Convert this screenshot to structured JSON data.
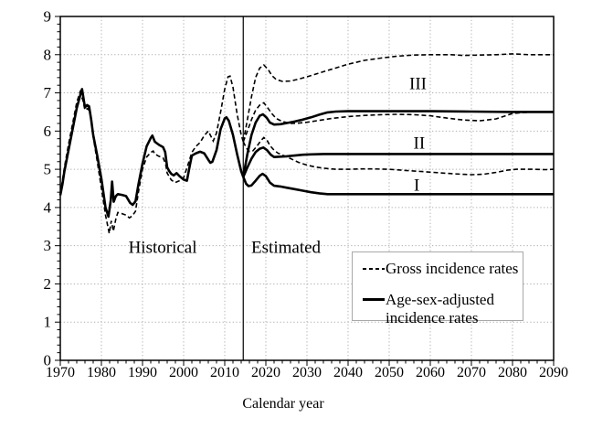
{
  "chart_data": {
    "type": "line",
    "title": "",
    "xlabel": "Calendar year",
    "ylabel": "",
    "xlim": [
      1970,
      2090
    ],
    "ylim": [
      0,
      9
    ],
    "grid": true,
    "x_axis": {
      "major_ticks": [
        1970,
        1980,
        1990,
        2000,
        2010,
        2020,
        2030,
        2040,
        2050,
        2060,
        2070,
        2080,
        2090
      ],
      "minor_step": 2
    },
    "y_axis": {
      "major_ticks": [
        0,
        1,
        2,
        3,
        4,
        5,
        6,
        7,
        8,
        9
      ],
      "minor_step": 0.2
    },
    "divider": {
      "x": 2014.5
    },
    "region_labels": [
      {
        "text": "Historical",
        "x": 1994.9,
        "y": 2.94
      },
      {
        "text": "Estimated",
        "x": 2024.9,
        "y": 2.94
      }
    ],
    "scenario_labels": [
      {
        "text": "III",
        "x": 2057.0,
        "y": 7.22
      },
      {
        "text": "II",
        "x": 2057.3,
        "y": 5.67
      },
      {
        "text": "I",
        "x": 2056.7,
        "y": 4.57
      }
    ],
    "legend": {
      "items": [
        {
          "style": "dashed",
          "lines": [
            "Gross incidence rates",
            ""
          ]
        },
        {
          "style": "solid",
          "lines": [
            "Age-sex-adjusted",
            "incidence rates"
          ]
        }
      ]
    },
    "colors": {
      "line": "#000000",
      "grid": "#b0b0b0"
    },
    "series": [
      {
        "name": "gross-historical",
        "legend": "Gross incidence rates",
        "style": "dashed",
        "points": [
          [
            1970,
            4.35
          ],
          [
            1970.5,
            4.7
          ],
          [
            1971,
            5.05
          ],
          [
            1972,
            5.65
          ],
          [
            1973,
            6.2
          ],
          [
            1974,
            6.75
          ],
          [
            1974.8,
            7.02
          ],
          [
            1975.5,
            6.8
          ],
          [
            1976,
            6.55
          ],
          [
            1976.7,
            6.6
          ],
          [
            1977.3,
            6.45
          ],
          [
            1978,
            5.85
          ],
          [
            1979,
            5.2
          ],
          [
            1980,
            4.5
          ],
          [
            1981,
            3.8
          ],
          [
            1981.9,
            3.32
          ],
          [
            1982.4,
            3.65
          ],
          [
            1982.9,
            3.38
          ],
          [
            1983.5,
            3.7
          ],
          [
            1984,
            3.87
          ],
          [
            1985,
            3.84
          ],
          [
            1986,
            3.8
          ],
          [
            1986.8,
            3.73
          ],
          [
            1987.5,
            3.78
          ],
          [
            1988.3,
            3.9
          ],
          [
            1989,
            4.4
          ],
          [
            1990,
            5.0
          ],
          [
            1991,
            5.32
          ],
          [
            1992,
            5.44
          ],
          [
            1992.6,
            5.48
          ],
          [
            1993,
            5.4
          ],
          [
            1994,
            5.34
          ],
          [
            1995,
            5.3
          ],
          [
            1995.6,
            5.15
          ],
          [
            1996,
            4.9
          ],
          [
            1997,
            4.72
          ],
          [
            1997.9,
            4.65
          ],
          [
            1999,
            4.7
          ],
          [
            2000,
            4.78
          ],
          [
            2001,
            5.1
          ],
          [
            2002,
            5.44
          ],
          [
            2003,
            5.6
          ],
          [
            2004,
            5.7
          ],
          [
            2005,
            5.88
          ],
          [
            2006,
            6.0
          ],
          [
            2006.7,
            5.85
          ],
          [
            2007.2,
            5.74
          ],
          [
            2008,
            5.95
          ],
          [
            2009,
            6.5
          ],
          [
            2010,
            7.1
          ],
          [
            2010.8,
            7.42
          ],
          [
            2011.3,
            7.44
          ],
          [
            2012,
            7.15
          ],
          [
            2013,
            6.45
          ],
          [
            2014,
            5.9
          ],
          [
            2014.5,
            5.72
          ]
        ]
      },
      {
        "name": "gross-III",
        "legend": "Gross incidence rates, scenario III",
        "style": "dashed",
        "points": [
          [
            2014.5,
            5.72
          ],
          [
            2015.5,
            6.3
          ],
          [
            2016.5,
            6.9
          ],
          [
            2017.5,
            7.4
          ],
          [
            2018.5,
            7.65
          ],
          [
            2019.5,
            7.73
          ],
          [
            2020.5,
            7.62
          ],
          [
            2021.5,
            7.45
          ],
          [
            2022.5,
            7.35
          ],
          [
            2024,
            7.3
          ],
          [
            2026,
            7.31
          ],
          [
            2028,
            7.36
          ],
          [
            2030,
            7.42
          ],
          [
            2033,
            7.52
          ],
          [
            2036,
            7.62
          ],
          [
            2040,
            7.75
          ],
          [
            2044,
            7.85
          ],
          [
            2048,
            7.91
          ],
          [
            2052,
            7.96
          ],
          [
            2056,
            7.99
          ],
          [
            2060,
            8.0
          ],
          [
            2065,
            8.0
          ],
          [
            2068,
            7.98
          ],
          [
            2072,
            7.99
          ],
          [
            2076,
            8.0
          ],
          [
            2080,
            8.02
          ],
          [
            2084,
            8.0
          ],
          [
            2090,
            8.0
          ]
        ]
      },
      {
        "name": "gross-II",
        "legend": "Gross incidence rates, scenario II",
        "style": "dashed",
        "points": [
          [
            2014.5,
            5.72
          ],
          [
            2015.5,
            6.0
          ],
          [
            2016.5,
            6.3
          ],
          [
            2017.5,
            6.55
          ],
          [
            2018.5,
            6.68
          ],
          [
            2019.5,
            6.74
          ],
          [
            2020.5,
            6.6
          ],
          [
            2021.5,
            6.45
          ],
          [
            2022.5,
            6.33
          ],
          [
            2024,
            6.25
          ],
          [
            2026,
            6.2
          ],
          [
            2028,
            6.21
          ],
          [
            2030,
            6.23
          ],
          [
            2033,
            6.28
          ],
          [
            2036,
            6.33
          ],
          [
            2040,
            6.38
          ],
          [
            2044,
            6.41
          ],
          [
            2048,
            6.43
          ],
          [
            2052,
            6.44
          ],
          [
            2056,
            6.43
          ],
          [
            2060,
            6.4
          ],
          [
            2064,
            6.34
          ],
          [
            2068,
            6.29
          ],
          [
            2072,
            6.27
          ],
          [
            2076,
            6.32
          ],
          [
            2080,
            6.46
          ],
          [
            2083,
            6.49
          ],
          [
            2086,
            6.5
          ],
          [
            2090,
            6.5
          ]
        ]
      },
      {
        "name": "gross-I",
        "legend": "Gross incidence rates, scenario I",
        "style": "dashed",
        "points": [
          [
            2014.5,
            5.72
          ],
          [
            2015.3,
            5.55
          ],
          [
            2016,
            5.47
          ],
          [
            2016.8,
            5.48
          ],
          [
            2017.8,
            5.6
          ],
          [
            2018.8,
            5.75
          ],
          [
            2019.5,
            5.83
          ],
          [
            2020.3,
            5.76
          ],
          [
            2021,
            5.62
          ],
          [
            2022,
            5.5
          ],
          [
            2023,
            5.42
          ],
          [
            2024.5,
            5.35
          ],
          [
            2026,
            5.28
          ],
          [
            2028,
            5.18
          ],
          [
            2030,
            5.11
          ],
          [
            2032,
            5.06
          ],
          [
            2034,
            5.03
          ],
          [
            2037,
            5.0
          ],
          [
            2040,
            5.0
          ],
          [
            2043,
            5.01
          ],
          [
            2046,
            5.01
          ],
          [
            2050,
            5.0
          ],
          [
            2054,
            4.97
          ],
          [
            2058,
            4.94
          ],
          [
            2062,
            4.91
          ],
          [
            2066,
            4.88
          ],
          [
            2070,
            4.86
          ],
          [
            2073,
            4.87
          ],
          [
            2076,
            4.92
          ],
          [
            2079,
            4.98
          ],
          [
            2081,
            5.0
          ],
          [
            2085,
            5.0
          ],
          [
            2088,
            4.99
          ],
          [
            2090,
            5.0
          ]
        ]
      },
      {
        "name": "adjusted-historical",
        "legend": "Age-sex-adjusted incidence rates",
        "style": "solid",
        "points": [
          [
            1970,
            4.32
          ],
          [
            1970.5,
            4.6
          ],
          [
            1971,
            4.95
          ],
          [
            1972,
            5.5
          ],
          [
            1973,
            6.05
          ],
          [
            1974,
            6.6
          ],
          [
            1975,
            7.0
          ],
          [
            1975.3,
            7.1
          ],
          [
            1976,
            6.62
          ],
          [
            1976.5,
            6.68
          ],
          [
            1977,
            6.65
          ],
          [
            1977.5,
            6.3
          ],
          [
            1978,
            5.9
          ],
          [
            1979,
            5.35
          ],
          [
            1980,
            4.75
          ],
          [
            1981,
            4.0
          ],
          [
            1981.7,
            3.76
          ],
          [
            1982.3,
            4.2
          ],
          [
            1982.6,
            4.68
          ],
          [
            1983,
            4.15
          ],
          [
            1983.5,
            4.3
          ],
          [
            1984,
            4.35
          ],
          [
            1985,
            4.33
          ],
          [
            1986,
            4.3
          ],
          [
            1987,
            4.12
          ],
          [
            1987.6,
            4.07
          ],
          [
            1988.3,
            4.16
          ],
          [
            1989,
            4.6
          ],
          [
            1990,
            5.15
          ],
          [
            1991,
            5.6
          ],
          [
            1992,
            5.82
          ],
          [
            1992.4,
            5.88
          ],
          [
            1993,
            5.72
          ],
          [
            1994,
            5.64
          ],
          [
            1995,
            5.58
          ],
          [
            1995.5,
            5.45
          ],
          [
            1996,
            5.05
          ],
          [
            1996.5,
            4.95
          ],
          [
            1997,
            4.88
          ],
          [
            1997.6,
            4.84
          ],
          [
            1998.3,
            4.9
          ],
          [
            1999,
            4.82
          ],
          [
            2000,
            4.73
          ],
          [
            2000.8,
            4.7
          ],
          [
            2001.5,
            5.1
          ],
          [
            2002,
            5.36
          ],
          [
            2003,
            5.42
          ],
          [
            2004,
            5.46
          ],
          [
            2005,
            5.42
          ],
          [
            2006,
            5.25
          ],
          [
            2006.5,
            5.17
          ],
          [
            2007,
            5.2
          ],
          [
            2008,
            5.5
          ],
          [
            2009,
            6.05
          ],
          [
            2010,
            6.33
          ],
          [
            2010.4,
            6.36
          ],
          [
            2011,
            6.27
          ],
          [
            2012,
            5.9
          ],
          [
            2013,
            5.4
          ],
          [
            2014,
            4.95
          ],
          [
            2014.5,
            4.8
          ]
        ]
      },
      {
        "name": "adjusted-III",
        "legend": "Age-sex-adjusted incidence rates, scenario III",
        "style": "solid",
        "points": [
          [
            2014.5,
            4.8
          ],
          [
            2015.5,
            5.4
          ],
          [
            2016.5,
            5.9
          ],
          [
            2017.5,
            6.22
          ],
          [
            2018.5,
            6.4
          ],
          [
            2019.3,
            6.44
          ],
          [
            2020.2,
            6.35
          ],
          [
            2021,
            6.22
          ],
          [
            2022,
            6.17
          ],
          [
            2023.5,
            6.18
          ],
          [
            2025,
            6.21
          ],
          [
            2027,
            6.25
          ],
          [
            2029,
            6.3
          ],
          [
            2031,
            6.36
          ],
          [
            2033,
            6.43
          ],
          [
            2035,
            6.49
          ],
          [
            2037,
            6.51
          ],
          [
            2040,
            6.52
          ],
          [
            2050,
            6.52
          ],
          [
            2060,
            6.52
          ],
          [
            2070,
            6.51
          ],
          [
            2080,
            6.5
          ],
          [
            2090,
            6.5
          ]
        ]
      },
      {
        "name": "adjusted-II",
        "legend": "Age-sex-adjusted incidence rates, scenario II",
        "style": "solid",
        "points": [
          [
            2014.5,
            4.8
          ],
          [
            2015.5,
            5.05
          ],
          [
            2016.5,
            5.28
          ],
          [
            2017.5,
            5.45
          ],
          [
            2018.5,
            5.54
          ],
          [
            2019.4,
            5.57
          ],
          [
            2020.3,
            5.5
          ],
          [
            2021.2,
            5.38
          ],
          [
            2022,
            5.32
          ],
          [
            2023.5,
            5.33
          ],
          [
            2025,
            5.34
          ],
          [
            2027,
            5.36
          ],
          [
            2029,
            5.38
          ],
          [
            2031,
            5.39
          ],
          [
            2034,
            5.4
          ],
          [
            2040,
            5.4
          ],
          [
            2050,
            5.4
          ],
          [
            2060,
            5.4
          ],
          [
            2070,
            5.4
          ],
          [
            2080,
            5.4
          ],
          [
            2090,
            5.4
          ]
        ]
      },
      {
        "name": "adjusted-I",
        "legend": "Age-sex-adjusted incidence rates, scenario I",
        "style": "solid",
        "points": [
          [
            2014.5,
            4.8
          ],
          [
            2015.2,
            4.62
          ],
          [
            2015.8,
            4.56
          ],
          [
            2016.5,
            4.58
          ],
          [
            2017.5,
            4.7
          ],
          [
            2018.5,
            4.83
          ],
          [
            2019.2,
            4.88
          ],
          [
            2020,
            4.82
          ],
          [
            2021,
            4.65
          ],
          [
            2022,
            4.57
          ],
          [
            2023.5,
            4.55
          ],
          [
            2025,
            4.52
          ],
          [
            2027,
            4.48
          ],
          [
            2029,
            4.44
          ],
          [
            2031,
            4.4
          ],
          [
            2033,
            4.37
          ],
          [
            2035,
            4.35
          ],
          [
            2040,
            4.35
          ],
          [
            2050,
            4.35
          ],
          [
            2060,
            4.35
          ],
          [
            2070,
            4.35
          ],
          [
            2080,
            4.35
          ],
          [
            2090,
            4.35
          ]
        ]
      }
    ]
  }
}
